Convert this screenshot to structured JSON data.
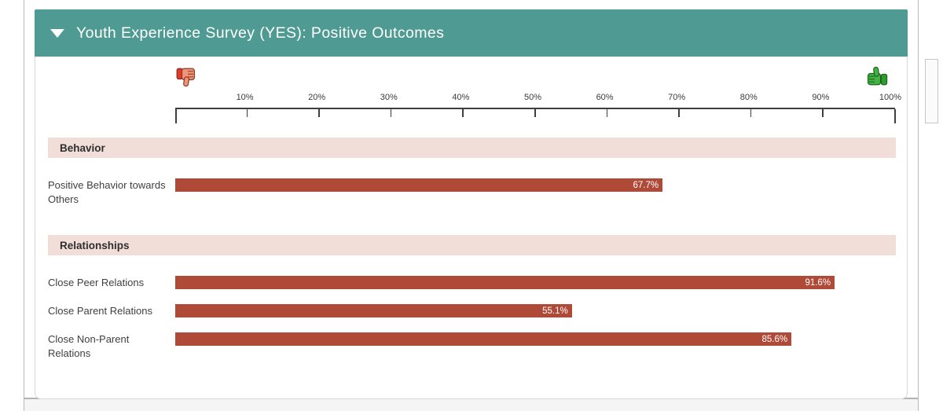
{
  "page": {
    "collapse_indicator": "collapsed-triangle-down",
    "panel_title": "Youth Experience Survey (YES): Positive Outcomes"
  },
  "icons": {
    "negative_end": "thumbs-down-icon",
    "positive_end": "thumbs-up-icon"
  },
  "colors": {
    "header_teal": "#4f9b93",
    "section_pink": "#f2ded8",
    "bar_red": "#b04a38"
  },
  "chart_data": {
    "type": "bar",
    "orientation": "horizontal",
    "title": "Youth Experience Survey (YES): Positive Outcomes",
    "xlim": [
      0,
      100
    ],
    "unit": "%",
    "axis_ticks": [
      "10%",
      "20%",
      "30%",
      "40%",
      "50%",
      "60%",
      "70%",
      "80%",
      "90%",
      "100%"
    ],
    "grid": false,
    "legend_position": "axis-ends (thumbs-down left, thumbs-up right)",
    "sections": [
      {
        "title": "Behavior",
        "rows": [
          {
            "label": "Positive Behavior towards Others",
            "value": 67.7,
            "value_label": "67.7%"
          }
        ]
      },
      {
        "title": "Relationships",
        "rows": [
          {
            "label": "Close Peer Relations",
            "value": 91.6,
            "value_label": "91.6%"
          },
          {
            "label": "Close Parent Relations",
            "value": 55.1,
            "value_label": "55.1%"
          },
          {
            "label": "Close Non-Parent Relations",
            "value": 85.6,
            "value_label": "85.6%"
          }
        ]
      }
    ]
  }
}
